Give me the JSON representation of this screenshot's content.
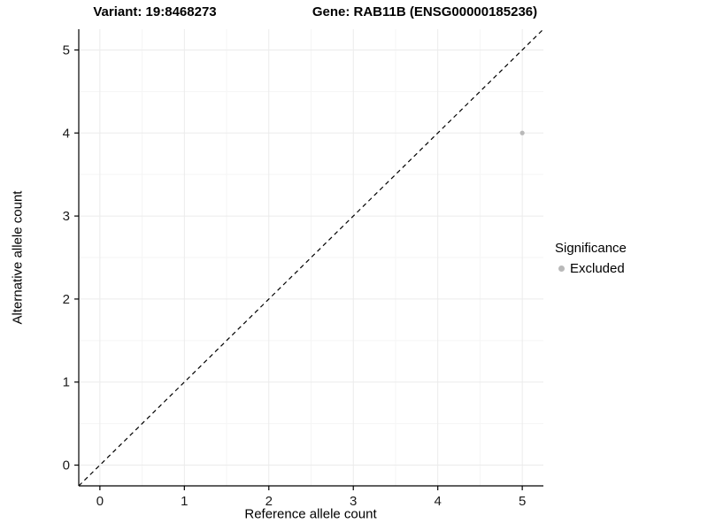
{
  "header": {
    "variant_title": "Variant: 19:8468273",
    "gene_title": "Gene: RAB11B (ENSG00000185236)"
  },
  "chart_data": {
    "type": "scatter",
    "title_left": "Variant: 19:8468273",
    "title_right": "Gene: RAB11B (ENSG00000185236)",
    "xlabel": "Reference allele count",
    "ylabel": "Alternative allele count",
    "xlim": [
      -0.25,
      5.25
    ],
    "ylim": [
      -0.25,
      5.25
    ],
    "xticks": [
      0,
      1,
      2,
      3,
      4,
      5
    ],
    "yticks": [
      0,
      1,
      2,
      3,
      4,
      5
    ],
    "grid": true,
    "points": [
      {
        "x": 5,
        "y": 4,
        "series": "Excluded"
      }
    ],
    "reference_line": {
      "type": "identity",
      "x1": -0.25,
      "y1": -0.25,
      "x2": 5.25,
      "y2": 5.25,
      "style": "dashed",
      "color": "#000000"
    },
    "legend": {
      "title": "Significance",
      "position": "right",
      "entries": [
        {
          "label": "Excluded",
          "color": "#b9b9b9"
        }
      ]
    },
    "colors": {
      "point": "#b9b9b9",
      "grid_major": "#ebebeb",
      "grid_minor": "#f5f5f5",
      "axis": "#000000",
      "tick_label": "#1a1a1a",
      "background": "#ffffff"
    }
  }
}
